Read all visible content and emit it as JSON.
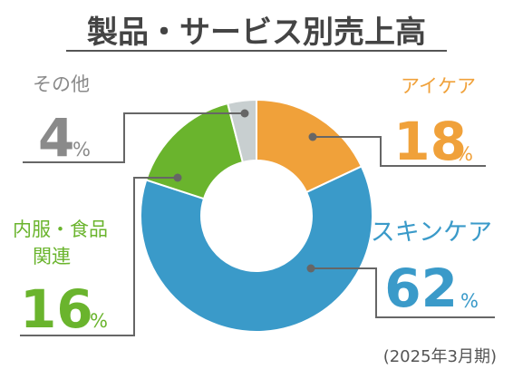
{
  "chart_data": {
    "type": "pie",
    "title": "製品・サービス別売上高",
    "note": "(2025年3月期)",
    "unit": "%",
    "slices": [
      {
        "label": "アイケア",
        "value": 18,
        "color": "#f0a13a"
      },
      {
        "label": "スキンケア",
        "value": 62,
        "color": "#3a9ac9"
      },
      {
        "label": "内服・食品関連",
        "value": 16,
        "color": "#6ab42d"
      },
      {
        "label": "その他",
        "value": 4,
        "color": "#c8cfd0"
      }
    ]
  }
}
